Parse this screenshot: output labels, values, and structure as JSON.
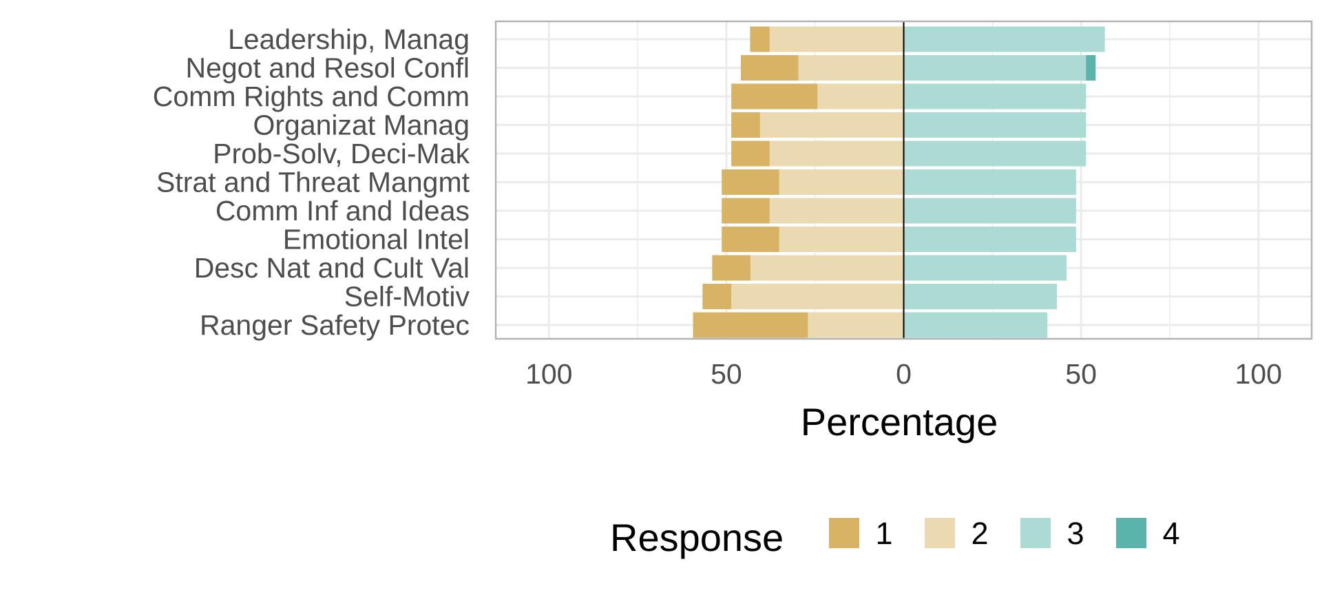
{
  "chart_data": {
    "type": "bar",
    "orientation": "horizontal",
    "stacking": "diverging",
    "xlabel": "Percentage",
    "xlim": [
      -115,
      115
    ],
    "xticks": [
      -100,
      -50,
      0,
      50,
      100
    ],
    "xtick_labels": [
      "100",
      "50",
      "0",
      "50",
      "100"
    ],
    "grid": true,
    "legend": {
      "title": "Response",
      "position": "bottom",
      "entries": [
        "1",
        "2",
        "3",
        "4"
      ]
    },
    "colors": {
      "1": "#d8b365",
      "2": "#ebd9b2",
      "3": "#acdad5",
      "4": "#5ab4ac"
    },
    "categories": [
      "Leadership, Manag",
      "Negot and Resol Confl",
      "Comm Rights and Comm",
      "Organizat Manag",
      "Prob-Solv, Deci-Mak",
      "Strat and Threat Mangmt",
      "Comm Inf and Ideas",
      "Emotional Intel",
      "Desc Nat and Cult Val",
      "Self-Motiv",
      "Ranger Safety Protec"
    ],
    "series": [
      {
        "name": "1",
        "side": "negative",
        "values": [
          5.5,
          16.2,
          24.3,
          8.1,
          10.8,
          16.2,
          13.5,
          16.2,
          10.8,
          8.1,
          32.4
        ]
      },
      {
        "name": "2",
        "side": "negative",
        "values": [
          37.8,
          29.7,
          24.3,
          40.5,
          37.8,
          35.1,
          37.8,
          35.1,
          43.2,
          48.6,
          27.0
        ]
      },
      {
        "name": "3",
        "side": "positive",
        "values": [
          56.7,
          51.4,
          51.4,
          51.4,
          51.4,
          48.6,
          48.6,
          48.6,
          45.9,
          43.2,
          40.5
        ]
      },
      {
        "name": "4",
        "side": "positive",
        "values": [
          0,
          2.7,
          0,
          0,
          0,
          0,
          0,
          0,
          0,
          0,
          0
        ]
      }
    ]
  }
}
